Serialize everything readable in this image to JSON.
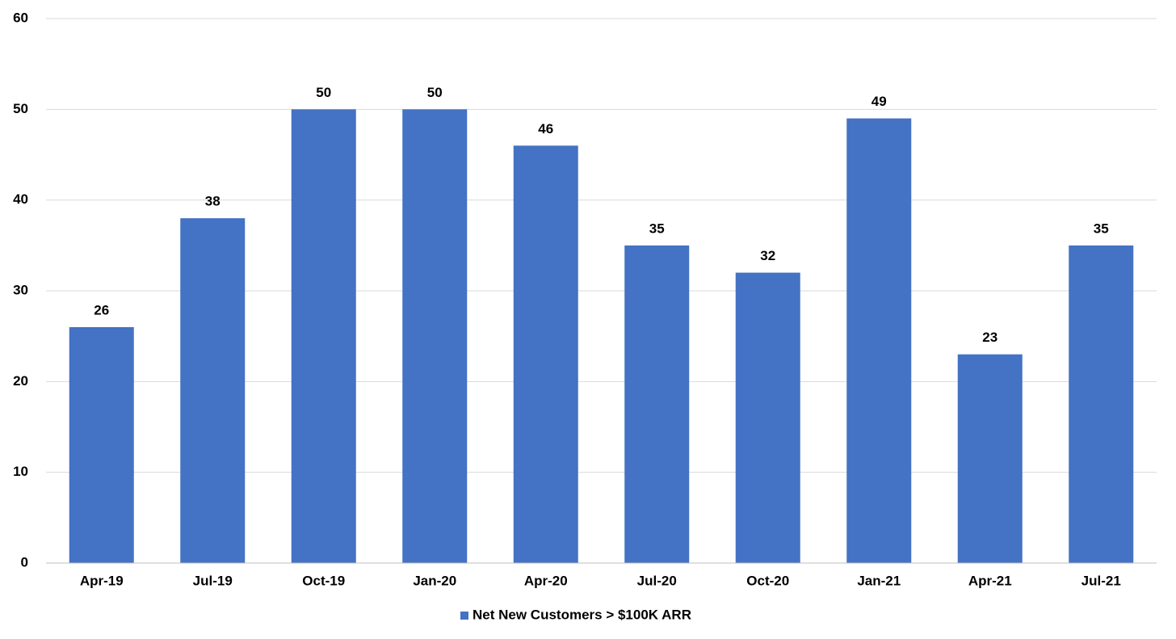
{
  "chart_data": {
    "type": "bar",
    "categories": [
      "Apr-19",
      "Jul-19",
      "Oct-19",
      "Jan-20",
      "Apr-20",
      "Jul-20",
      "Oct-20",
      "Jan-21",
      "Apr-21",
      "Jul-21"
    ],
    "series": [
      {
        "name": "Net New Customers > $100K ARR",
        "color": "#4472c4",
        "values": [
          26,
          38,
          50,
          50,
          46,
          35,
          32,
          49,
          23,
          35
        ]
      }
    ],
    "ylim": [
      0,
      60
    ],
    "yticks": [
      0,
      10,
      20,
      30,
      40,
      50,
      60
    ],
    "grid": true,
    "legend": "bottom",
    "data_labels": true
  }
}
